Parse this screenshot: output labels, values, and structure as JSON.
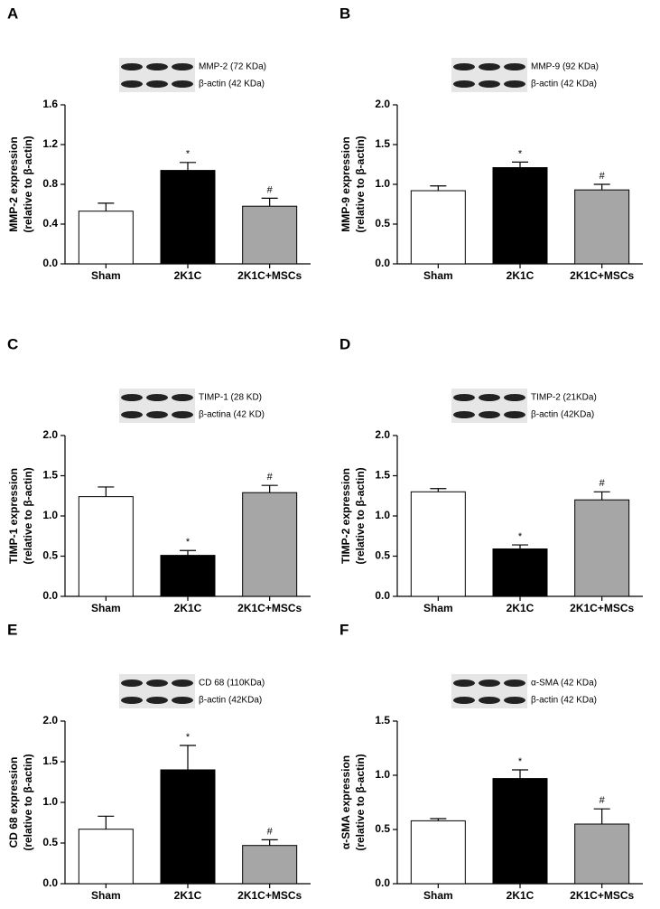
{
  "chart_data": [
    {
      "type": "bar",
      "panel": "A",
      "blot_labels": [
        "MMP-2 (72 KDa)",
        "β-actin (42 KDa)"
      ],
      "ylabel": [
        "MMP-2 expression",
        "(relative to β-actin)"
      ],
      "categories": [
        "Sham",
        "2K1C",
        "2K1C+MSCs"
      ],
      "values": [
        0.53,
        0.94,
        0.58
      ],
      "errors": [
        0.08,
        0.08,
        0.08
      ],
      "colors": [
        "#ffffff",
        "#000000",
        "#a6a6a6"
      ],
      "annotations": [
        {
          "index": 1,
          "text": "*"
        },
        {
          "index": 2,
          "text": "#"
        }
      ],
      "ylim": [
        0,
        1.6
      ],
      "yticks": [
        {
          "value": 0,
          "label": "0.0"
        },
        0.4,
        0.8,
        1.2,
        1.6
      ]
    },
    {
      "type": "bar",
      "panel": "B",
      "blot_labels": [
        "MMP-9 (92 KDa)",
        "β-actin (42 KDa)"
      ],
      "ylabel": [
        "MMP-9 expression",
        "(relative to β-actin)"
      ],
      "categories": [
        "Sham",
        "2K1C",
        "2K1C+MSCs"
      ],
      "values": [
        0.92,
        1.21,
        0.93
      ],
      "errors": [
        0.06,
        0.07,
        0.07
      ],
      "colors": [
        "#ffffff",
        "#000000",
        "#a6a6a6"
      ],
      "annotations": [
        {
          "index": 1,
          "text": "*"
        },
        {
          "index": 2,
          "text": "#"
        }
      ],
      "ylim": [
        0,
        2.0
      ],
      "yticks": [
        {
          "value": 0,
          "label": "0.0"
        },
        0.5,
        {
          "value": 1,
          "label": "1.0"
        },
        1.5,
        {
          "value": 2,
          "label": "2.0"
        }
      ]
    },
    {
      "type": "bar",
      "panel": "C",
      "blot_labels": [
        "TIMP-1 (28 KD)",
        "β-actina (42 KD)"
      ],
      "ylabel": [
        "TIMP-1 expression",
        "(relative to β-actin)"
      ],
      "categories": [
        "Sham",
        "2K1C",
        "2K1C+MSCs"
      ],
      "values": [
        1.24,
        0.51,
        1.29
      ],
      "errors": [
        0.12,
        0.06,
        0.09
      ],
      "colors": [
        "#ffffff",
        "#000000",
        "#a6a6a6"
      ],
      "annotations": [
        {
          "index": 1,
          "text": "*"
        },
        {
          "index": 2,
          "text": "#"
        }
      ],
      "ylim": [
        0,
        2.0
      ],
      "yticks": [
        {
          "value": 0,
          "label": "0.0"
        },
        0.5,
        {
          "value": 1,
          "label": "1.0"
        },
        1.5,
        {
          "value": 2,
          "label": "2.0"
        }
      ]
    },
    {
      "type": "bar",
      "panel": "D",
      "blot_labels": [
        "TIMP-2 (21KDa)",
        "β-actin (42KDa)"
      ],
      "ylabel": [
        "TIMP-2 expression",
        "(relative to β-actin)"
      ],
      "categories": [
        "Sham",
        "2K1C",
        "2K1C+MSCs"
      ],
      "values": [
        1.3,
        0.59,
        1.2
      ],
      "errors": [
        0.04,
        0.05,
        0.1
      ],
      "colors": [
        "#ffffff",
        "#000000",
        "#a6a6a6"
      ],
      "annotations": [
        {
          "index": 1,
          "text": "*"
        },
        {
          "index": 2,
          "text": "#"
        }
      ],
      "ylim": [
        0,
        2.0
      ],
      "yticks": [
        {
          "value": 0,
          "label": "0.0"
        },
        0.5,
        {
          "value": 1,
          "label": "1.0"
        },
        1.5,
        {
          "value": 2,
          "label": "2.0"
        }
      ]
    },
    {
      "type": "bar",
      "panel": "E",
      "blot_labels": [
        "CD 68 (110KDa)",
        "β-actin (42KDa)"
      ],
      "ylabel": [
        "CD 68 expression",
        "(relative to β-actin)"
      ],
      "categories": [
        "Sham",
        "2K1C",
        "2K1C+MSCs"
      ],
      "values": [
        0.67,
        1.4,
        0.47
      ],
      "errors": [
        0.16,
        0.3,
        0.07
      ],
      "colors": [
        "#ffffff",
        "#000000",
        "#a6a6a6"
      ],
      "annotations": [
        {
          "index": 1,
          "text": "*"
        },
        {
          "index": 2,
          "text": "#"
        }
      ],
      "ylim": [
        0,
        2.0
      ],
      "yticks": [
        {
          "value": 0,
          "label": "0.0"
        },
        0.5,
        {
          "value": 1,
          "label": "1.0"
        },
        1.5,
        {
          "value": 2,
          "label": "2.0"
        }
      ]
    },
    {
      "type": "bar",
      "panel": "F",
      "blot_labels": [
        "α-SMA (42 KDa)",
        "β-actin (42 KDa)"
      ],
      "ylabel": [
        "α-SMA expression",
        "(relative to β-actin)"
      ],
      "categories": [
        "Sham",
        "2K1C",
        "2K1C+MSCs"
      ],
      "values": [
        0.58,
        0.97,
        0.55
      ],
      "errors": [
        0.02,
        0.08,
        0.14
      ],
      "colors": [
        "#ffffff",
        "#000000",
        "#a6a6a6"
      ],
      "annotations": [
        {
          "index": 1,
          "text": "*"
        },
        {
          "index": 2,
          "text": "#"
        }
      ],
      "ylim": [
        0,
        1.5
      ],
      "yticks": [
        {
          "value": 0,
          "label": "0.0"
        },
        0.5,
        {
          "value": 1,
          "label": "1.0"
        },
        1.5
      ]
    }
  ]
}
